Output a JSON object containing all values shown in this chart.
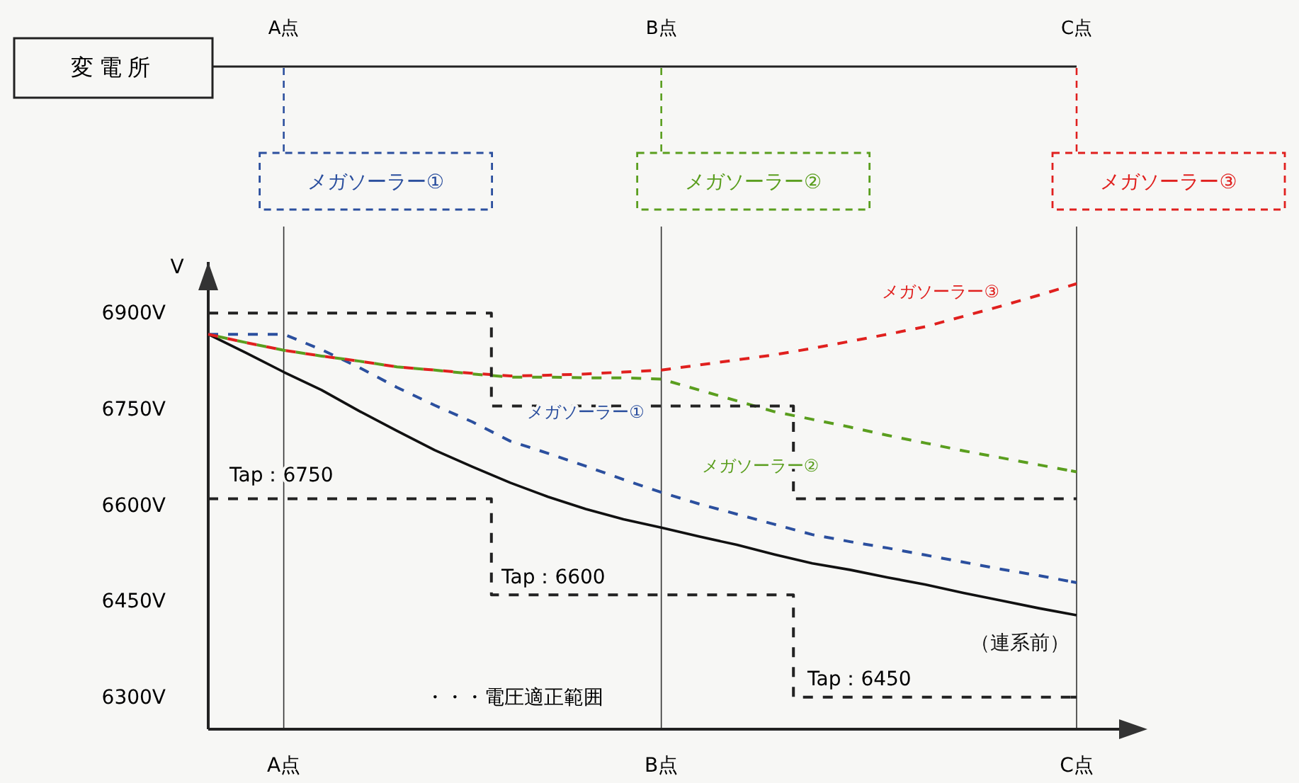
{
  "chart_data": {
    "type": "line",
    "ylabel": "V",
    "categories": [
      null,
      null,
      "A点",
      null,
      null,
      null,
      null,
      null,
      null,
      null,
      null,
      null,
      "B点",
      null,
      null,
      null,
      null,
      null,
      null,
      null,
      null,
      null,
      null,
      "C点"
    ],
    "ylim": [
      6250,
      6980
    ],
    "yticks": [
      {
        "value": 6300,
        "label": "6300V"
      },
      {
        "value": 6450,
        "label": "6450V"
      },
      {
        "value": 6600,
        "label": "6600V"
      },
      {
        "value": 6750,
        "label": "6750V"
      },
      {
        "value": 6900,
        "label": "6900V"
      }
    ],
    "grid": "x",
    "marker": "none",
    "series": [
      {
        "name": "（連系前）",
        "color": "#111111",
        "line_style": "solid",
        "values": [
          6867,
          6838,
          6808,
          6780,
          6747,
          6716,
          6686,
          6660,
          6635,
          6613,
          6594,
          6578,
          6565,
          6551,
          6538,
          6523,
          6509,
          6499,
          6487,
          6476,
          6463,
          6451,
          6439,
          6428
        ]
      },
      {
        "name": "メガソーラー①",
        "color": "#2b4f9e",
        "line_style": "dashed",
        "values": [
          6867,
          6867,
          6867,
          6843,
          6815,
          6784,
          6756,
          6730,
          6700,
          6681,
          6661,
          6640,
          6620,
          6602,
          6586,
          6570,
          6554,
          6543,
          6533,
          6522,
          6511,
          6500,
          6490,
          6479
        ]
      },
      {
        "name": "メガソーラー②",
        "color": "#5a9e1e",
        "line_style": "dashed",
        "values": [
          6867,
          6854,
          6842,
          6833,
          6825,
          6816,
          6811,
          6805,
          6800,
          6800,
          6799,
          6799,
          6797,
          6780,
          6763,
          6746,
          6734,
          6722,
          6709,
          6697,
          6685,
          6674,
          6663,
          6652
        ]
      },
      {
        "name": "メガソーラー③",
        "color": "#e0201e",
        "line_style": "dashed",
        "values": [
          6867,
          6854,
          6842,
          6833,
          6825,
          6816,
          6811,
          6806,
          6802,
          6803,
          6805,
          6808,
          6811,
          6819,
          6827,
          6835,
          6845,
          6856,
          6867,
          6879,
          6895,
          6911,
          6928,
          6946
        ]
      },
      {
        "type": "step",
        "color": "#222222",
        "line_style": "dashed",
        "values": [
          6900,
          6900,
          6900,
          6900,
          6900,
          6900,
          6900,
          6900,
          6755,
          6755,
          6755,
          6755,
          6755,
          6755,
          6755,
          6755,
          6610,
          6610,
          6610,
          6610,
          6610,
          6610,
          6610,
          6610
        ]
      },
      {
        "type": "step",
        "color": "#222222",
        "line_style": "dashed",
        "values": [
          6610,
          6610,
          6610,
          6610,
          6610,
          6610,
          6610,
          6610,
          6460,
          6460,
          6460,
          6460,
          6460,
          6460,
          6460,
          6460,
          6300,
          6300,
          6300,
          6300,
          6300,
          6300,
          6300,
          6300
        ]
      }
    ],
    "annotations": [
      "変電所",
      "・・・電圧適正範囲",
      "Tap：6750",
      "Tap：6600",
      "Tap：6450"
    ]
  }
}
